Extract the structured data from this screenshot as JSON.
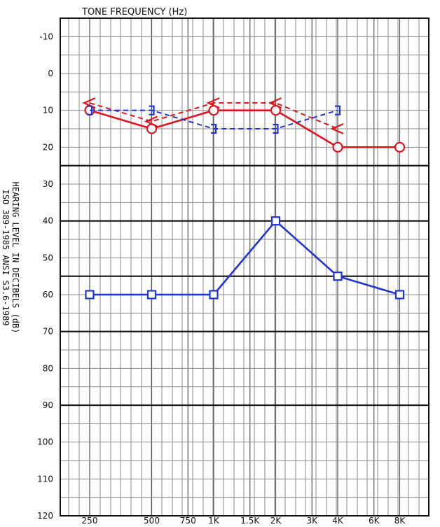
{
  "chart_data": {
    "type": "line",
    "title": "TONE FREQUENCY (Hz)",
    "ylabel_line1": "HEARING LEVEL IN DECIBELS (dB)",
    "ylabel_line2": "ISO 389-1985 ANSI S3.6-1989",
    "x_ticks": [
      "250",
      "500",
      "750",
      "1K",
      "1.5K",
      "2K",
      "3K",
      "4K",
      "6K",
      "8K"
    ],
    "y_ticks": [
      -10,
      0,
      10,
      20,
      30,
      40,
      50,
      60,
      70,
      80,
      90,
      100,
      110,
      120
    ],
    "ylim": [
      -15,
      120
    ],
    "y_inverted": true,
    "x_scale": "log2 (octave)",
    "grid": true,
    "bold_lines_db": [
      25,
      40,
      55,
      70,
      90
    ],
    "series": [
      {
        "key": "red-air",
        "color": "#e0141c",
        "marker": "circle",
        "dashed": false,
        "x": [
          "250",
          "500",
          "1K",
          "2K",
          "4K",
          "8K"
        ],
        "values": [
          10,
          15,
          10,
          10,
          20,
          20
        ]
      },
      {
        "key": "red-bone",
        "color": "#e0141c",
        "marker": "bracket-left",
        "dashed": true,
        "x": [
          "250",
          "500",
          "1K",
          "2K",
          "4K"
        ],
        "values": [
          8,
          13,
          8,
          8,
          15
        ]
      },
      {
        "key": "blue-bone",
        "color": "#1f35d6",
        "marker": "bracket-right",
        "dashed": true,
        "x": [
          "250",
          "500",
          "1K",
          "2K",
          "4K"
        ],
        "values": [
          10,
          10,
          15,
          15,
          10
        ]
      },
      {
        "key": "blue-air",
        "color": "#1f35d6",
        "marker": "square",
        "dashed": false,
        "x": [
          "250",
          "500",
          "1K",
          "2K",
          "4K",
          "8K"
        ],
        "values": [
          60,
          60,
          60,
          40,
          55,
          60
        ]
      }
    ]
  }
}
